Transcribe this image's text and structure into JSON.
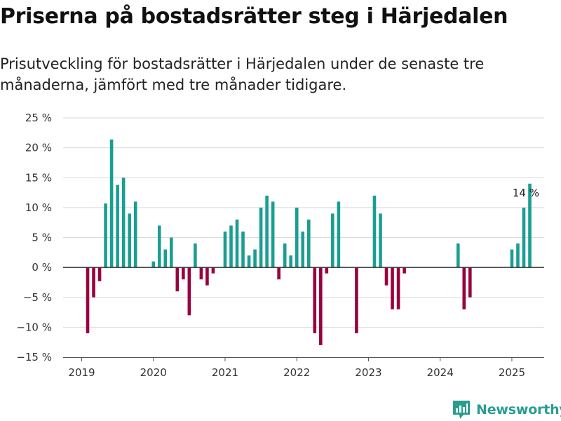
{
  "title": "Priserna på bostadsrätter steg i Härjedalen",
  "subtitle": "Prisutveckling för bostadsrätter i Härjedalen under de senaste tre månaderna, jämfört med tre månader tidigare.",
  "brand": {
    "name": "Newsworthy",
    "icon": "newsworthy-logo-icon"
  },
  "colors": {
    "positive": "#1a9e92",
    "negative": "#99003f",
    "grid": "#d9d9d9",
    "zero_line": "#333333",
    "brand": "#2a9d8f"
  },
  "chart_data": {
    "type": "bar",
    "x_unit": "month",
    "x_start": "2019-01",
    "x_tick_labels": [
      "2019",
      "2020",
      "2021",
      "2022",
      "2023",
      "2024",
      "2025"
    ],
    "y_tick_labels": [
      "25 %",
      "20 %",
      "15 %",
      "10 %",
      "5 %",
      "0 %",
      "−5 %",
      "−10 %",
      "−15 %"
    ],
    "ylim": [
      -15,
      25
    ],
    "grid": true,
    "annotation": {
      "text": "14 %",
      "month": "2025-03"
    },
    "series": [
      {
        "values": [
          null,
          -11,
          -5,
          -2.3,
          10.7,
          21.4,
          13.8,
          15,
          9,
          11,
          null,
          null,
          1,
          7,
          3,
          5,
          -4,
          -2,
          -8,
          4,
          -2,
          -3,
          -1,
          null,
          6,
          7,
          8,
          6,
          2,
          3,
          10,
          12,
          11,
          -2,
          4,
          2,
          10,
          6,
          8,
          -11,
          -13,
          -1,
          9,
          11,
          null,
          null,
          -11,
          null,
          null,
          12,
          9,
          -3,
          -7,
          -7,
          -1,
          null,
          null,
          null,
          null,
          null,
          null,
          null,
          null,
          4,
          -7,
          -5,
          null,
          null,
          null,
          null,
          null,
          null,
          3,
          4,
          10,
          14
        ]
      }
    ]
  }
}
